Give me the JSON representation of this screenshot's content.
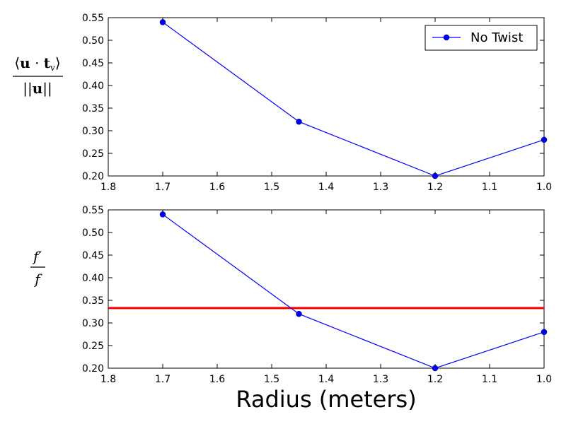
{
  "figure": {
    "xlabel": "Radius (meters)"
  },
  "chart_data": [
    {
      "type": "line",
      "title": "",
      "ylabel": "⟨u · tᵥ⟩ / ||u||",
      "xlabel": "",
      "xlim": [
        1.8,
        1.0
      ],
      "ylim": [
        0.2,
        0.55
      ],
      "x_ticks": [
        "1.8",
        "1.7",
        "1.6",
        "1.5",
        "1.4",
        "1.3",
        "1.2",
        "1.1",
        "1.0"
      ],
      "y_ticks": [
        "0.20",
        "0.25",
        "0.30",
        "0.35",
        "0.40",
        "0.45",
        "0.50",
        "0.55"
      ],
      "grid": false,
      "legend": {
        "placement": "top-right",
        "entries": [
          "No Twist"
        ]
      },
      "series": [
        {
          "name": "No Twist",
          "color": "#0000ff",
          "marker": "circle",
          "x": [
            1.7,
            1.45,
            1.2,
            1.0
          ],
          "y": [
            0.54,
            0.32,
            0.2,
            0.28
          ]
        }
      ]
    },
    {
      "type": "line",
      "title": "",
      "ylabel": "f′ / f",
      "xlabel": "Radius (meters)",
      "xlim": [
        1.8,
        1.0
      ],
      "ylim": [
        0.2,
        0.55
      ],
      "x_ticks": [
        "1.8",
        "1.7",
        "1.6",
        "1.5",
        "1.4",
        "1.3",
        "1.2",
        "1.1",
        "1.0"
      ],
      "y_ticks": [
        "0.20",
        "0.25",
        "0.30",
        "0.35",
        "0.40",
        "0.45",
        "0.50",
        "0.55"
      ],
      "grid": false,
      "series": [
        {
          "name": "",
          "color": "#0000ff",
          "marker": "circle",
          "x": [
            1.7,
            1.45,
            1.2,
            1.0
          ],
          "y": [
            0.54,
            0.32,
            0.2,
            0.28
          ]
        }
      ],
      "reference_line": {
        "orientation": "horizontal",
        "y": 0.333,
        "color": "#ff0000"
      }
    }
  ]
}
